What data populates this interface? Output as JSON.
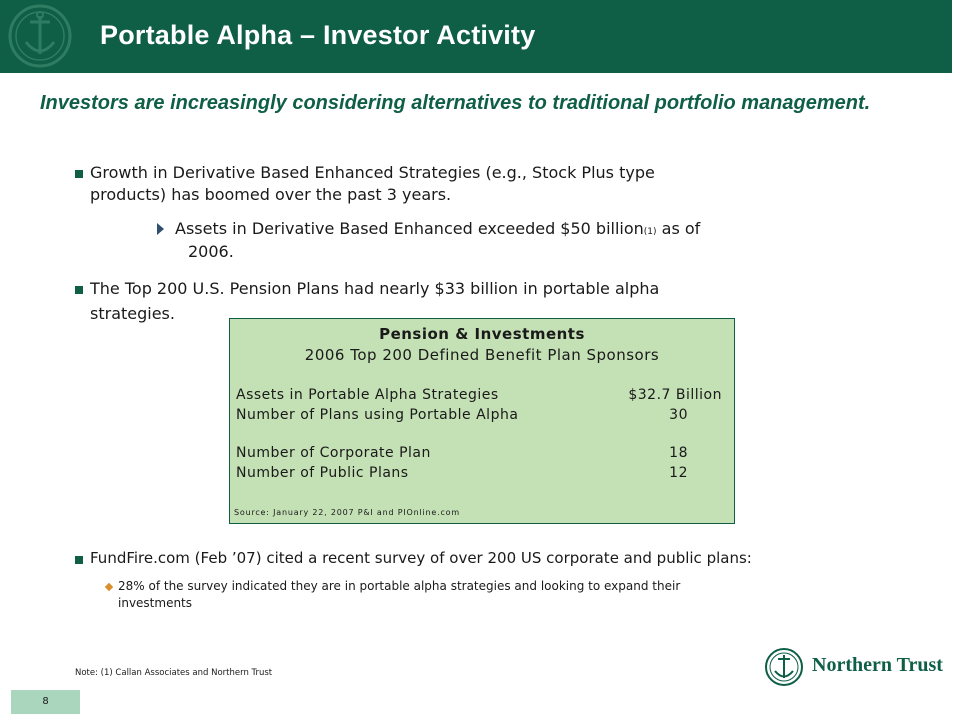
{
  "header": {
    "title": "Portable Alpha – Investor Activity"
  },
  "subtitle": "Investors are increasingly considering alternatives to traditional portfolio management.",
  "bullets": {
    "b1_line1": "Growth in Derivative Based Enhanced Strategies (e.g., Stock Plus type",
    "b1_line2": "products) has boomed over the past 3 years.",
    "b1_sub_line1_pre": "Assets in Derivative Based Enhanced exceeded $50 billion",
    "b1_sub_note": "(1)",
    "b1_sub_line1_post": " as of",
    "b1_sub_line2": "2006.",
    "b2_line1": "The Top 200 U.S. Pension Plans had nearly $33 billion in portable alpha",
    "b2_line2": "strategies.",
    "b3_line1": "FundFire.com (Feb ’07) cited a recent survey of over 200 US corporate and public plans:",
    "b3_sub_line1": "28% of the survey indicated they are in portable alpha strategies and looking to expand their",
    "b3_sub_line2": "investments"
  },
  "table_box": {
    "title": "Pension & Investments",
    "subtitle": "2006 Top 200 Defined Benefit Plan Sponsors",
    "rows": [
      {
        "label": "Assets in Portable Alpha Strategies",
        "value": "$32.7 Billion"
      },
      {
        "label": "Number of Plans using Portable Alpha",
        "value": "30"
      },
      {
        "label": "Number of Corporate Plan",
        "value": "18"
      },
      {
        "label": "Number of Public Plans",
        "value": "12"
      }
    ],
    "source": "Source: January 22, 2007 P&I and PIOnline.com"
  },
  "note": "Note: (1) Callan Associates and Northern Trust",
  "footer": {
    "brand": "Northern Trust",
    "page_number": "8"
  },
  "colors": {
    "brand_green": "#0f5e46",
    "box_fill": "#c4e0b5",
    "page_tab": "#a9d6bd",
    "diamond": "#d9902b"
  },
  "icons": {
    "header_logo": "anchor-seal-icon",
    "footer_logo": "anchor-seal-icon"
  }
}
